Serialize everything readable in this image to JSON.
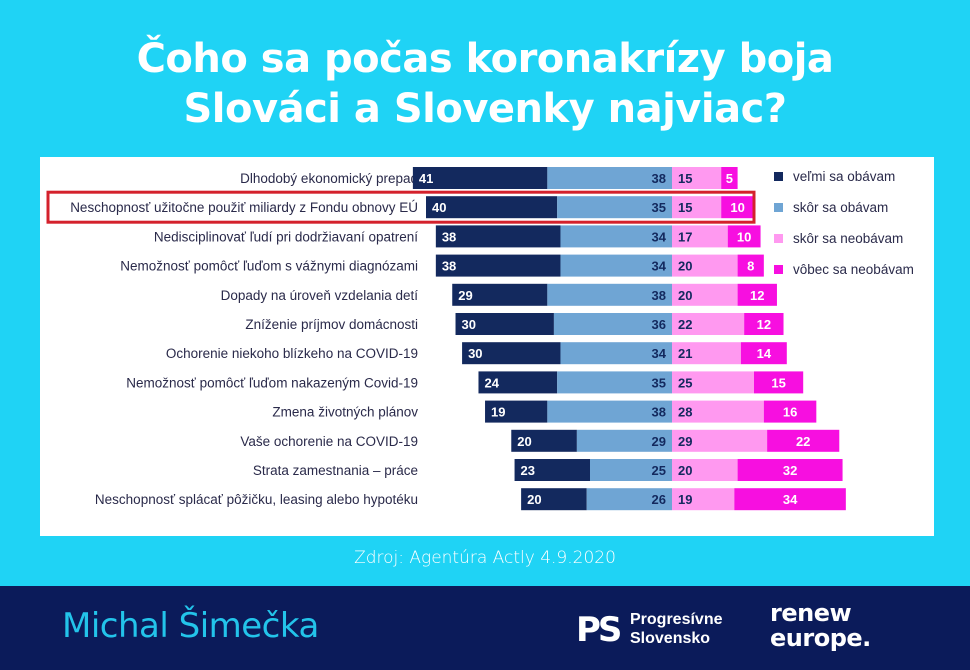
{
  "title": {
    "line1": "Čoho sa počas koronakrízy boja",
    "line2": "Slováci a Slovenky najviac?"
  },
  "source": "Zdroj: Agentúra Actly 4.9.2020",
  "footer": {
    "author": "Michal Šimečka",
    "ps_logo_text": "PS",
    "ps_name_line1": "Progresívne",
    "ps_name_line2": "Slovensko",
    "renew_line1": "renew",
    "renew_line2": "europe."
  },
  "colors": {
    "background": "#1fd3f5",
    "footer": "#0b1b5a",
    "highlight": "#d4212c"
  },
  "chart_data": {
    "type": "bar",
    "orientation": "horizontal",
    "stacked": true,
    "layout": "diverging",
    "highlight_category_index": 1,
    "legend_position": "right",
    "categories": [
      "Dlhodobý ekonomický prepad",
      "Neschopnosť užitočne použiť miliardy z Fondu obnovy EÚ",
      "Nedisciplinovať ľudí pri dodržiavaní opatrení",
      "Nemožnosť pomôcť ľuďom s vážnymi diagnózami",
      "Dopady na úroveň vzdelania detí",
      "Zníženie príjmov domácnosti",
      "Ochorenie niekoho blízkeho na COVID-19",
      "Nemožnosť pomôcť ľuďom nakazeným Covid-19",
      "Zmena životných plánov",
      "Vaše ochorenie na COVID-19",
      "Strata zamestnania – práce",
      "Neschopnosť splácať pôžičku, leasing alebo hypotéku"
    ],
    "series": [
      {
        "name": "veľmi sa obávam",
        "color": "#13295e",
        "values": [
          41,
          40,
          38,
          38,
          29,
          30,
          30,
          24,
          19,
          20,
          23,
          20
        ]
      },
      {
        "name": "skôr sa obávam",
        "color": "#6fa5d4",
        "values": [
          38,
          35,
          34,
          34,
          38,
          36,
          34,
          35,
          38,
          29,
          25,
          26
        ]
      },
      {
        "name": "skôr sa neobávam",
        "color": "#ff99f0",
        "values": [
          15,
          15,
          17,
          20,
          20,
          22,
          21,
          25,
          28,
          29,
          20,
          19
        ]
      },
      {
        "name": "vôbec sa neobávam",
        "color": "#f70fe0",
        "values": [
          5,
          10,
          10,
          8,
          12,
          12,
          14,
          15,
          16,
          22,
          32,
          34
        ]
      }
    ]
  }
}
